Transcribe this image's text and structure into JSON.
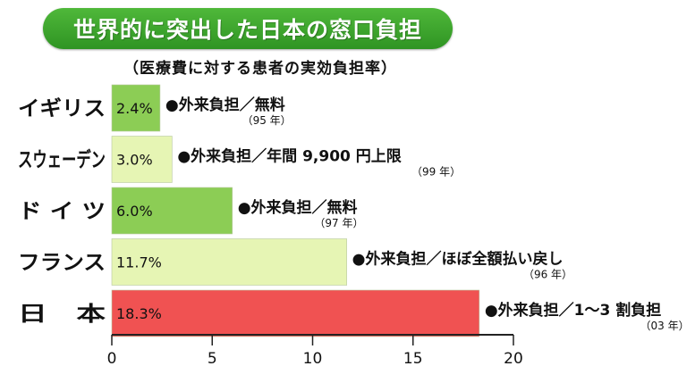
{
  "title": "世界的に突出した日本の窓口負担",
  "subtitle": "（医療費に対する患者の実効負担率）",
  "colors": {
    "title_bg": "#3aa52c",
    "bar_green": "#8ccd55",
    "bar_light": "#e6f5b4",
    "bar_red": "#f05252",
    "axis": "#222222"
  },
  "chart_data": {
    "type": "bar",
    "orientation": "horizontal",
    "title": "世界的に突出した日本の窓口負担",
    "subtitle": "（医療費に対する患者の実効負担率）",
    "categories": [
      "イギリス",
      "スウェーデン",
      "ド イ ツ",
      "フランス",
      "日　本"
    ],
    "values": [
      2.4,
      3.0,
      6.0,
      11.7,
      18.3
    ],
    "value_labels": [
      "2.4%",
      "3.0%",
      "6.0%",
      "11.7%",
      "18.3%"
    ],
    "bar_colors": [
      "#8ccd55",
      "#e6f5b4",
      "#8ccd55",
      "#e6f5b4",
      "#f05252"
    ],
    "annotations": [
      {
        "text": "●外来負担／無料",
        "year": "（95 年）"
      },
      {
        "text": "●外来負担／年間 9,900 円上限",
        "year": "（99 年）"
      },
      {
        "text": "●外来負担／無料",
        "year": "（97 年）"
      },
      {
        "text": "●外来負担／ほぼ全額払い戻し",
        "year": "（96 年）"
      },
      {
        "text": "●外来負担／1〜3 割負担",
        "year": "（03 年）"
      }
    ],
    "x_ticks": [
      0,
      5,
      10,
      15,
      20
    ],
    "xlim": [
      0,
      20
    ],
    "xlabel": "",
    "ylabel": "",
    "grid": false,
    "legend": "none"
  }
}
